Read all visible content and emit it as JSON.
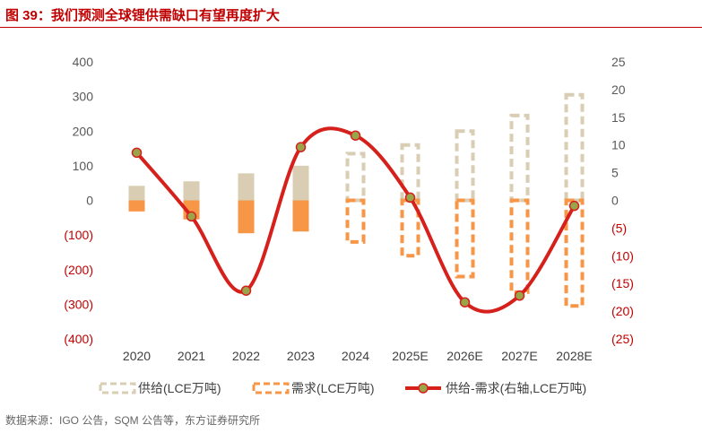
{
  "page": {
    "title": "图 39：我们预测全球锂供需缺口有望再度扩大",
    "source": "数据来源：IGO 公告，SQM 公告等，东方证券研究所"
  },
  "chart_data": {
    "type": "bar",
    "categories": [
      "2020",
      "2021",
      "2022",
      "2023",
      "2024",
      "2025E",
      "2026E",
      "2027E",
      "2028E"
    ],
    "forecast_from_index": 4,
    "left_axis": {
      "ylim": [
        -400,
        400
      ],
      "ticks": [
        400,
        300,
        200,
        100,
        0,
        -100,
        -200,
        -300,
        -400
      ],
      "tick_labels": [
        "400",
        "300",
        "200",
        "100",
        "0",
        "(100)",
        "(200)",
        "(300)",
        "(400)"
      ]
    },
    "right_axis": {
      "ylim": [
        -25,
        25
      ],
      "ticks": [
        25,
        20,
        15,
        10,
        5,
        0,
        -5,
        -10,
        -15,
        -20,
        -25
      ],
      "tick_labels": [
        "25",
        "20",
        "15",
        "10",
        "5",
        "0",
        "(5)",
        "(10)",
        "(15)",
        "(20)",
        "(25)"
      ]
    },
    "series": [
      {
        "name": "供给(LCE万吨)",
        "axis": "left",
        "style": "bar",
        "values": [
          42,
          55,
          78,
          100,
          135,
          160,
          200,
          245,
          305
        ]
      },
      {
        "name": "需求(LCE万吨)",
        "axis": "left",
        "style": "bar",
        "values": [
          -32,
          -55,
          -95,
          -90,
          -120,
          -160,
          -220,
          -265,
          -305
        ]
      },
      {
        "name": "供给-需求(右轴,LCE万吨)",
        "axis": "right",
        "style": "line-smooth",
        "values": [
          8.6,
          -2.9,
          -16.3,
          9.6,
          11.7,
          0.5,
          -18.4,
          -17.2,
          -1.0
        ]
      }
    ],
    "colors": {
      "supply": "#d9cdb4",
      "demand": "#f79646",
      "line": "#d6201c",
      "marker_fill": "#9aa54a",
      "negative_tick": "#c00000",
      "tick": "#595959"
    },
    "legend_position": "bottom",
    "grid": false
  }
}
